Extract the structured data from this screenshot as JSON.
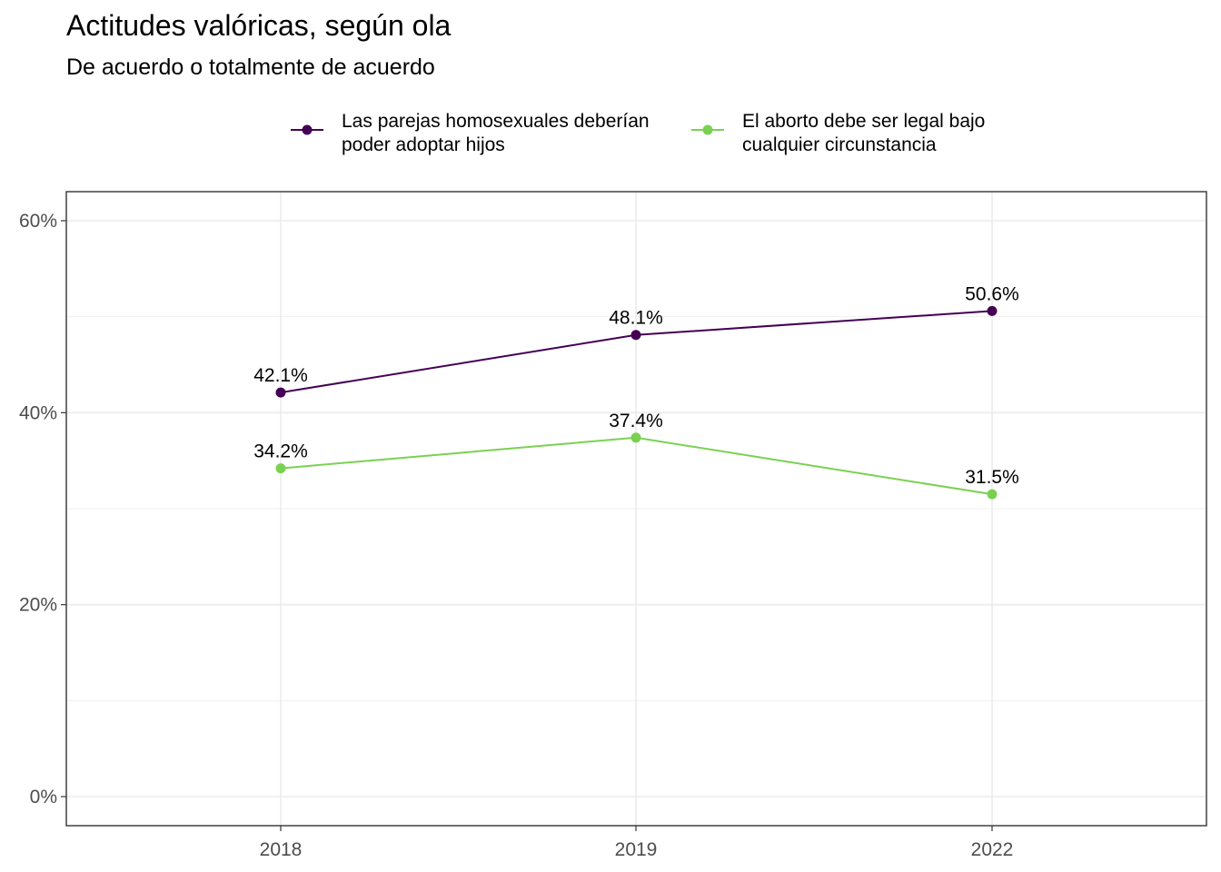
{
  "chart_data": {
    "type": "line",
    "title": "Actitudes valóricas, según ola",
    "subtitle": "De acuerdo o totalmente de acuerdo",
    "xlabel": "",
    "ylabel": "",
    "categories": [
      "2018",
      "2019",
      "2022"
    ],
    "ylim": [
      0,
      60
    ],
    "yticks": [
      0,
      20,
      40,
      60
    ],
    "ytick_labels": [
      "0%",
      "20%",
      "40%",
      "60%"
    ],
    "grid": true,
    "legend_position": "top",
    "series": [
      {
        "name_lines": [
          "Las parejas homosexuales deberían",
          "poder adoptar hijos"
        ],
        "color": "#440154",
        "values": [
          42.1,
          48.1,
          50.6
        ],
        "labels": [
          "42.1%",
          "48.1%",
          "50.6%"
        ]
      },
      {
        "name_lines": [
          "El aborto debe ser legal bajo",
          "cualquier circunstancia"
        ],
        "color": "#7AD151",
        "values": [
          34.2,
          37.4,
          31.5
        ],
        "labels": [
          "34.2%",
          "37.4%",
          "31.5%"
        ]
      }
    ]
  }
}
